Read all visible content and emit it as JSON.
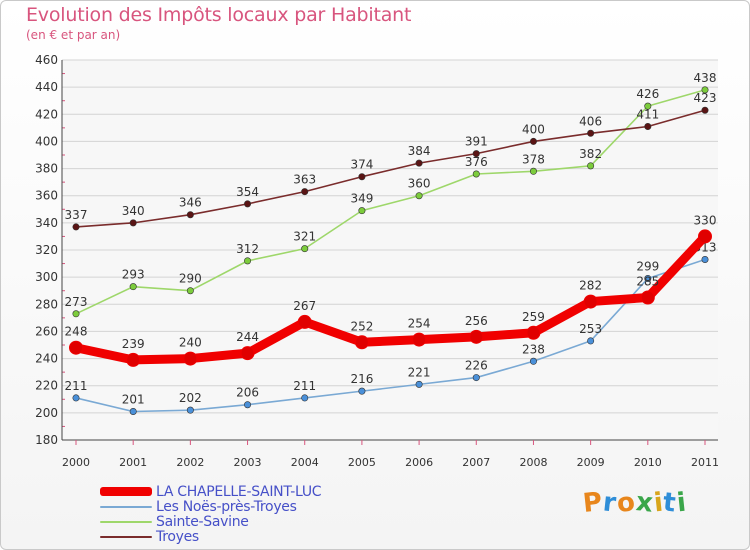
{
  "header": {
    "title": "Evolution des Impôts locaux par Habitant",
    "subtitle": "(en € et par an)"
  },
  "logo": {
    "letters": [
      "P",
      "r",
      "o",
      "x",
      "i",
      "t",
      "i"
    ],
    "colors": [
      "#e8861c",
      "#2f8ed8",
      "#e8861c",
      "#3aa64a",
      "#d8a51c",
      "#2f8ed8",
      "#3aa64a"
    ]
  },
  "chart_data": {
    "type": "line",
    "title": "Evolution des Impôts locaux par Habitant",
    "subtitle": "(en € et par an)",
    "xlabel": "",
    "ylabel": "",
    "x": [
      "2000",
      "2001",
      "2002",
      "2003",
      "2004",
      "2005",
      "2006",
      "2007",
      "2008",
      "2009",
      "2010",
      "2011"
    ],
    "ylim": [
      180,
      460
    ],
    "yticks": [
      180,
      200,
      220,
      240,
      260,
      280,
      300,
      320,
      340,
      360,
      380,
      400,
      420,
      440,
      460
    ],
    "grid": "horizontal",
    "series": [
      {
        "name": "LA CHAPELLE-SAINT-LUC",
        "values": [
          248,
          239,
          240,
          244,
          267,
          252,
          254,
          256,
          259,
          282,
          285,
          330
        ],
        "color": "#f00000",
        "marker": "#e00000",
        "emphasis": true
      },
      {
        "name": "Les Noës-près-Troyes",
        "values": [
          211,
          201,
          202,
          206,
          211,
          216,
          221,
          226,
          238,
          253,
          299,
          313
        ],
        "color": "#7aa9d4",
        "marker": "#4a90d9"
      },
      {
        "name": "Sainte-Savine",
        "values": [
          273,
          293,
          290,
          312,
          321,
          349,
          360,
          376,
          378,
          382,
          426,
          438
        ],
        "color": "#9ed76a",
        "marker": "#7ccc3c"
      },
      {
        "name": "Troyes",
        "values": [
          337,
          340,
          346,
          354,
          363,
          374,
          384,
          391,
          400,
          406,
          411,
          423
        ],
        "color": "#7a2c2c",
        "marker": "#5a1414"
      }
    ]
  }
}
